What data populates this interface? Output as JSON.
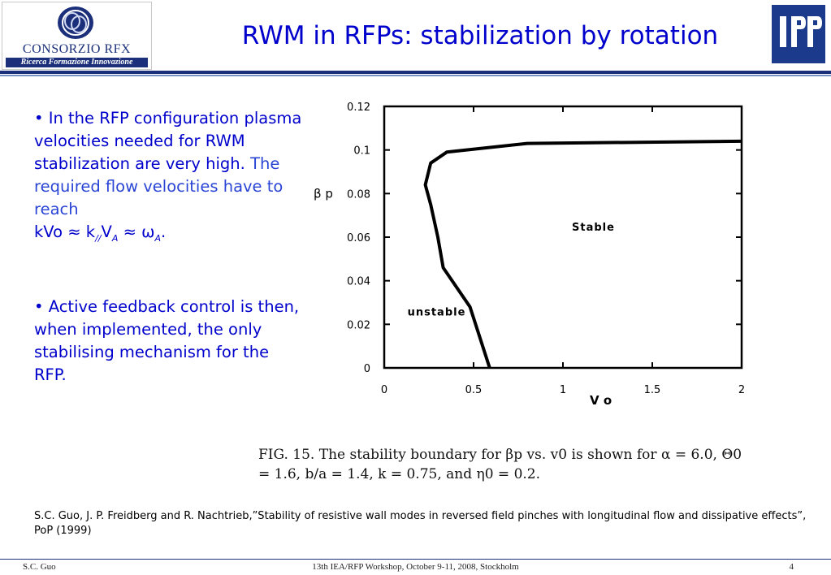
{
  "header": {
    "logo_left": {
      "name": "CONSORZIO RFX",
      "tagline": "Ricerca Formazione Innovazione"
    },
    "title": "RWM in RFPs: stabilization by rotation",
    "logo_right": "IPP"
  },
  "bullets": [
    {
      "line1": "• In the RFP configuration plasma velocities needed for RWM stabilization are very high.",
      "line2": "The required flow velocities have to reach",
      "formula": {
        "prefix": "kVo ≈ k",
        "sub1": "//",
        "mid": "V",
        "sub2": "A",
        "rel": " ≈ ω",
        "sub3": "A",
        "end": "."
      }
    },
    {
      "text": "• Active feedback control is then, when implemented, the only stabilising mechanism for the RFP."
    }
  ],
  "chart_data": {
    "type": "line",
    "xlabel": "V o",
    "ylabel": "β p",
    "xlim": [
      0,
      2
    ],
    "ylim": [
      0,
      0.12
    ],
    "xticks": [
      "0",
      "0.5",
      "1",
      "1.5",
      "2"
    ],
    "yticks": [
      "0",
      "0.02",
      "0.04",
      "0.06",
      "0.08",
      "0.1",
      "0.12"
    ],
    "grid": false,
    "series": [
      {
        "x": [
          0.59,
          0.48,
          0.33,
          0.3,
          0.26,
          0.23,
          0.26,
          0.35,
          0.8,
          2.0
        ],
        "y": [
          0.0,
          0.028,
          0.046,
          0.06,
          0.075,
          0.084,
          0.094,
          0.099,
          0.103,
          0.104
        ]
      }
    ],
    "annotations": [
      {
        "text": "Stable",
        "x": 1.05,
        "y": 0.063
      },
      {
        "text": "unstable",
        "x": 0.13,
        "y": 0.024
      }
    ]
  },
  "caption": {
    "line1": "FIG. 15. The stability boundary for βp vs. v0 is shown for α = 6.0, Θ0",
    "line2": "= 1.6, b/a = 1.4, k = 0.75, and η0 = 0.2."
  },
  "reference": "S.C. Guo, J. P. Freidberg and R. Nachtrieb,”Stability of resistive wall modes in reversed field pinches with longitudinal flow and dissipative effects”, PoP (1999)",
  "footer": {
    "author": "S.C. Guo",
    "event": "13th IEA/RFP Workshop, October 9-11, 2008, Stockholm",
    "page": "4"
  },
  "colors": {
    "title": "#0000cc",
    "rule": "#1b2f7a",
    "ipp_background": "#1b3a8c"
  }
}
